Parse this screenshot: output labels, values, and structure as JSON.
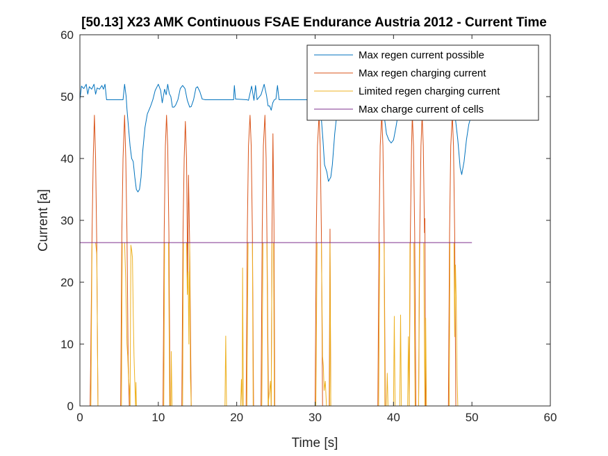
{
  "chart_data": {
    "type": "line",
    "title": "[50.13] X23 AMK Continuous  FSAE Endurance Austria 2012 - Current Time",
    "xlabel": "Time [s]",
    "ylabel": "Current [a]",
    "xlim": [
      0,
      60
    ],
    "ylim": [
      0,
      60
    ],
    "xticks": [
      0,
      10,
      20,
      30,
      40,
      50,
      60
    ],
    "yticks": [
      0,
      10,
      20,
      30,
      40,
      50,
      60
    ],
    "grid": false,
    "legend_position": "top-right",
    "series": [
      {
        "name": "Max regen current possible",
        "color": "#0072bd",
        "points": [
          [
            0,
            49.5
          ],
          [
            0.2,
            51.7
          ],
          [
            0.5,
            51.3
          ],
          [
            0.8,
            52
          ],
          [
            1,
            50.4
          ],
          [
            1.2,
            51.6
          ],
          [
            1.5,
            51.2
          ],
          [
            1.8,
            52
          ],
          [
            2.0,
            50.4
          ],
          [
            2.2,
            51.4
          ],
          [
            2.5,
            51.2
          ],
          [
            2.8,
            51.8
          ],
          [
            3.0,
            51.2
          ],
          [
            3.2,
            52
          ],
          [
            3.4,
            49.5
          ],
          [
            5.5,
            49.5
          ],
          [
            5.7,
            52
          ],
          [
            5.9,
            50
          ],
          [
            6.0,
            48
          ],
          [
            6.2,
            45
          ],
          [
            6.4,
            42
          ],
          [
            6.6,
            40
          ],
          [
            6.8,
            39.5
          ],
          [
            7.0,
            37
          ],
          [
            7.2,
            35
          ],
          [
            7.4,
            34.6
          ],
          [
            7.6,
            35
          ],
          [
            7.8,
            37
          ],
          [
            8.0,
            41
          ],
          [
            8.3,
            45
          ],
          [
            8.6,
            47.2
          ],
          [
            9.0,
            48.4
          ],
          [
            9.3,
            49.5
          ],
          [
            9.6,
            51
          ],
          [
            10.0,
            52
          ],
          [
            10.3,
            51
          ],
          [
            10.5,
            49
          ],
          [
            10.8,
            51.2
          ],
          [
            11.0,
            50.3
          ],
          [
            11.2,
            52
          ],
          [
            11.4,
            50.5
          ],
          [
            11.6,
            50
          ],
          [
            11.8,
            48.3
          ],
          [
            12.0,
            48.3
          ],
          [
            12.2,
            48.6
          ],
          [
            12.5,
            49.5
          ],
          [
            12.8,
            51.3
          ],
          [
            13.1,
            51.8
          ],
          [
            13.4,
            51.3
          ],
          [
            13.7,
            49.4
          ],
          [
            14.0,
            48.3
          ],
          [
            14.2,
            48.4
          ],
          [
            14.5,
            49.5
          ],
          [
            14.8,
            51.4
          ],
          [
            15.0,
            51.6
          ],
          [
            15.3,
            50.8
          ],
          [
            15.6,
            49.6
          ],
          [
            16.0,
            49.5
          ],
          [
            19.6,
            49.5
          ],
          [
            19.7,
            51.8
          ],
          [
            19.85,
            49.6
          ],
          [
            21.3,
            49.5
          ],
          [
            21.5,
            49.4
          ],
          [
            21.9,
            51.7
          ],
          [
            22.2,
            49.4
          ],
          [
            22.4,
            51.8
          ],
          [
            22.6,
            49.5
          ],
          [
            23.1,
            50.3
          ],
          [
            23.5,
            52
          ],
          [
            23.8,
            50.2
          ],
          [
            24.0,
            48.5
          ],
          [
            24.2,
            48.5
          ],
          [
            24.4,
            47.8
          ],
          [
            24.6,
            49
          ],
          [
            24.8,
            49.5
          ],
          [
            25.0,
            49.6
          ],
          [
            25.2,
            51.8
          ],
          [
            25.4,
            49.5
          ],
          [
            30.5,
            49.5
          ],
          [
            30.7,
            48
          ],
          [
            31.0,
            43
          ],
          [
            31.2,
            39
          ],
          [
            31.5,
            37.8
          ],
          [
            31.7,
            36.3
          ],
          [
            32.0,
            37
          ],
          [
            32.2,
            39
          ],
          [
            32.5,
            44
          ],
          [
            32.8,
            47.5
          ],
          [
            38.5,
            47.5
          ],
          [
            38.8,
            47
          ],
          [
            39.1,
            44
          ],
          [
            39.4,
            43
          ],
          [
            39.7,
            42.5
          ],
          [
            40.0,
            43
          ],
          [
            40.3,
            45
          ],
          [
            40.6,
            47.3
          ],
          [
            41.0,
            47.5
          ],
          [
            47.8,
            47.5
          ],
          [
            48.2,
            43
          ],
          [
            48.5,
            38.5
          ],
          [
            48.7,
            37.4
          ],
          [
            49.0,
            39.5
          ],
          [
            49.3,
            43
          ],
          [
            49.6,
            45.5
          ],
          [
            50.0,
            47.3
          ]
        ]
      },
      {
        "name": "Max regen charging current",
        "color": "#d95319",
        "points": [
          [
            0,
            0
          ],
          [
            1.3,
            0
          ],
          [
            1.4,
            10
          ],
          [
            1.55,
            28
          ],
          [
            1.7,
            40
          ],
          [
            1.85,
            47
          ],
          [
            2.0,
            40
          ],
          [
            2.15,
            26
          ],
          [
            2.3,
            0
          ],
          [
            5.2,
            0
          ],
          [
            5.35,
            28
          ],
          [
            5.5,
            40
          ],
          [
            5.7,
            47
          ],
          [
            5.85,
            40
          ],
          [
            6.0,
            28
          ],
          [
            6.15,
            8
          ],
          [
            6.3,
            0
          ],
          [
            10.6,
            0
          ],
          [
            10.75,
            28
          ],
          [
            10.9,
            42
          ],
          [
            11.05,
            47
          ],
          [
            11.2,
            42
          ],
          [
            11.35,
            28
          ],
          [
            11.5,
            0
          ],
          [
            13.0,
            0
          ],
          [
            13.15,
            28
          ],
          [
            13.3,
            40
          ],
          [
            13.45,
            46
          ],
          [
            13.6,
            40
          ],
          [
            13.75,
            20
          ],
          [
            13.85,
            37.3
          ],
          [
            14.0,
            26
          ],
          [
            14.2,
            0
          ],
          [
            21.2,
            0
          ],
          [
            21.35,
            28
          ],
          [
            21.5,
            42
          ],
          [
            21.7,
            47
          ],
          [
            21.85,
            42
          ],
          [
            22.0,
            28
          ],
          [
            22.15,
            0
          ],
          [
            23.1,
            0
          ],
          [
            23.25,
            28
          ],
          [
            23.4,
            42
          ],
          [
            23.6,
            47
          ],
          [
            23.75,
            40
          ],
          [
            23.9,
            22
          ],
          [
            24.05,
            0
          ],
          [
            24.4,
            0
          ],
          [
            24.5,
            28
          ],
          [
            24.62,
            44
          ],
          [
            24.75,
            30
          ],
          [
            24.85,
            0
          ],
          [
            30.0,
            0
          ],
          [
            30.15,
            28
          ],
          [
            30.3,
            42
          ],
          [
            30.5,
            47
          ],
          [
            30.65,
            42
          ],
          [
            30.8,
            28
          ],
          [
            30.95,
            0
          ],
          [
            31.8,
            0
          ],
          [
            31.9,
            28.6
          ],
          [
            32.0,
            0
          ],
          [
            38.0,
            0
          ],
          [
            38.15,
            28
          ],
          [
            38.3,
            42
          ],
          [
            38.5,
            47
          ],
          [
            38.65,
            42
          ],
          [
            38.8,
            28
          ],
          [
            38.95,
            0
          ],
          [
            42.0,
            0
          ],
          [
            42.15,
            28
          ],
          [
            42.3,
            42
          ],
          [
            42.4,
            47
          ],
          [
            42.55,
            42
          ],
          [
            42.7,
            28
          ],
          [
            42.85,
            0
          ],
          [
            43.2,
            0
          ],
          [
            43.35,
            28
          ],
          [
            43.5,
            42
          ],
          [
            43.65,
            47
          ],
          [
            43.8,
            42
          ],
          [
            43.95,
            28
          ],
          [
            44.0,
            30.3
          ],
          [
            44.1,
            0
          ],
          [
            47.0,
            0
          ],
          [
            47.15,
            28
          ],
          [
            47.3,
            42
          ],
          [
            47.5,
            47
          ],
          [
            47.65,
            42
          ],
          [
            47.8,
            28
          ],
          [
            47.95,
            0
          ],
          [
            50.0,
            0
          ]
        ]
      },
      {
        "name": "Limited regen charging current",
        "color": "#edb120",
        "points": [
          [
            0,
            0
          ],
          [
            1.4,
            0
          ],
          [
            1.55,
            26.4
          ],
          [
            1.7,
            26.4
          ],
          [
            1.85,
            26.4
          ],
          [
            2.0,
            26.4
          ],
          [
            2.15,
            24.5
          ],
          [
            2.3,
            0
          ],
          [
            5.3,
            0
          ],
          [
            5.4,
            26.4
          ],
          [
            5.5,
            26.4
          ],
          [
            5.7,
            26.4
          ],
          [
            5.85,
            20
          ],
          [
            6.0,
            10
          ],
          [
            6.1,
            8
          ],
          [
            6.2,
            4.5
          ],
          [
            6.3,
            3.2
          ],
          [
            6.4,
            0
          ],
          [
            6.5,
            26
          ],
          [
            6.6,
            25.2
          ],
          [
            6.7,
            24
          ],
          [
            6.8,
            15
          ],
          [
            6.9,
            8
          ],
          [
            7.0,
            3.8
          ],
          [
            7.1,
            0
          ],
          [
            7.15,
            3.8
          ],
          [
            7.2,
            0
          ],
          [
            10.7,
            0
          ],
          [
            10.8,
            26.4
          ],
          [
            11.05,
            26.4
          ],
          [
            11.3,
            26.4
          ],
          [
            11.45,
            0
          ],
          [
            11.6,
            0
          ],
          [
            11.65,
            8.8
          ],
          [
            11.75,
            0
          ],
          [
            13.1,
            0
          ],
          [
            13.2,
            26.4
          ],
          [
            13.45,
            26.4
          ],
          [
            13.6,
            26.4
          ],
          [
            13.7,
            18
          ],
          [
            13.8,
            21.7
          ],
          [
            13.9,
            10
          ],
          [
            14.0,
            26.4
          ],
          [
            14.1,
            4.5
          ],
          [
            14.2,
            0
          ],
          [
            18.5,
            0
          ],
          [
            18.6,
            11.3
          ],
          [
            18.7,
            0
          ],
          [
            20.5,
            0
          ],
          [
            20.6,
            4.3
          ],
          [
            20.7,
            0
          ],
          [
            20.75,
            22.3
          ],
          [
            20.85,
            0
          ],
          [
            21.3,
            0
          ],
          [
            21.45,
            26.4
          ],
          [
            21.7,
            26.4
          ],
          [
            22.0,
            26.4
          ],
          [
            22.1,
            0
          ],
          [
            23.2,
            0
          ],
          [
            23.35,
            26.4
          ],
          [
            23.6,
            26.4
          ],
          [
            23.85,
            26.4
          ],
          [
            24.0,
            0
          ],
          [
            24.3,
            4
          ],
          [
            24.4,
            0
          ],
          [
            24.5,
            26.4
          ],
          [
            24.7,
            26.4
          ],
          [
            24.8,
            0
          ],
          [
            30.1,
            0
          ],
          [
            30.25,
            26.4
          ],
          [
            30.5,
            26.4
          ],
          [
            30.8,
            26.4
          ],
          [
            30.95,
            8
          ],
          [
            31.05,
            6.5
          ],
          [
            31.15,
            2.5
          ],
          [
            31.3,
            4
          ],
          [
            31.45,
            0
          ],
          [
            31.85,
            0
          ],
          [
            31.9,
            26.4
          ],
          [
            32.0,
            0
          ],
          [
            38.1,
            0
          ],
          [
            38.25,
            26.4
          ],
          [
            38.5,
            26.4
          ],
          [
            38.8,
            26.4
          ],
          [
            38.9,
            0
          ],
          [
            39.1,
            0
          ],
          [
            39.2,
            5.3
          ],
          [
            39.3,
            0
          ],
          [
            40.0,
            0
          ],
          [
            40.1,
            14.5
          ],
          [
            40.2,
            0
          ],
          [
            40.8,
            0
          ],
          [
            40.9,
            14.7
          ],
          [
            41.0,
            0
          ],
          [
            41.8,
            0
          ],
          [
            41.9,
            11.2
          ],
          [
            42.0,
            0
          ],
          [
            42.1,
            26.4
          ],
          [
            42.35,
            26.4
          ],
          [
            42.6,
            26.4
          ],
          [
            42.75,
            0
          ],
          [
            43.2,
            0
          ],
          [
            43.3,
            26.4
          ],
          [
            43.6,
            26.4
          ],
          [
            43.85,
            26.4
          ],
          [
            44.0,
            0
          ],
          [
            44.1,
            14.2
          ],
          [
            44.2,
            0
          ],
          [
            47.1,
            0
          ],
          [
            47.2,
            26.4
          ],
          [
            47.5,
            26.4
          ],
          [
            47.7,
            26.4
          ],
          [
            47.8,
            11.2
          ],
          [
            47.9,
            22.8
          ],
          [
            48.0,
            17
          ],
          [
            48.1,
            5
          ],
          [
            48.2,
            0
          ],
          [
            50.0,
            0
          ]
        ]
      },
      {
        "name": "Max charge current of cells",
        "color": "#7e2f8e",
        "points": [
          [
            0,
            26.4
          ],
          [
            50,
            26.4
          ]
        ]
      }
    ]
  }
}
